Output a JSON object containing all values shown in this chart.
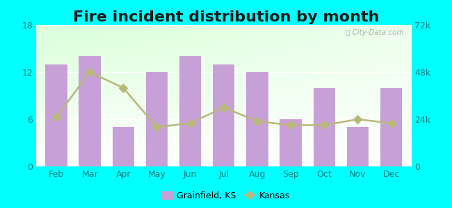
{
  "title": "Fire incident distribution by month",
  "months": [
    "Feb",
    "Mar",
    "Apr",
    "May",
    "Jun",
    "Jul",
    "Aug",
    "Sep",
    "Oct",
    "Nov",
    "Dec"
  ],
  "grainfield_values": [
    13,
    14,
    5,
    12,
    14,
    13,
    12,
    6,
    10,
    5,
    10
  ],
  "kansas_values": [
    25000,
    48000,
    40000,
    20000,
    22000,
    30000,
    23000,
    21000,
    21000,
    24000,
    22000
  ],
  "bar_color": "#c8a0d8",
  "line_color": "#b8b878",
  "left_ylim": [
    0,
    18
  ],
  "right_ylim": [
    0,
    72000
  ],
  "left_yticks": [
    0,
    6,
    12,
    18
  ],
  "right_yticks": [
    0,
    24000,
    48000,
    72000
  ],
  "right_yticklabels": [
    "0",
    "24k",
    "48k",
    "72k"
  ],
  "outer_background": "#00ffff",
  "title_fontsize": 16,
  "tick_color": "#008080",
  "legend_grainfield": "Grainfield, KS",
  "legend_kansas": "Kansas"
}
